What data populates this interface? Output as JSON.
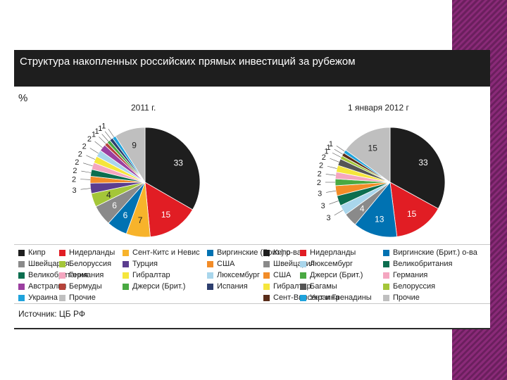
{
  "header": {
    "title": "Структура накопленных российских прямых инвестиций за рубежом",
    "unit": "%"
  },
  "source": "Источник: ЦБ РФ",
  "chart_data": [
    {
      "type": "pie",
      "title": "2011 г.",
      "slices": [
        {
          "label": "Кипр",
          "value": 33,
          "color": "#1e1e1e"
        },
        {
          "label": "Нидерланды",
          "value": 15,
          "color": "#e11d24"
        },
        {
          "label": "Сент-Китс и Невис",
          "value": 7,
          "color": "#f7b32b"
        },
        {
          "label": "Виргинские (Брит.) о-ва",
          "value": 6,
          "color": "#0072b2"
        },
        {
          "label": "Швейцария",
          "value": 6,
          "color": "#8a8a8a"
        },
        {
          "label": "Белоруссия",
          "value": 4,
          "color": "#a4c639"
        },
        {
          "label": "Турция",
          "value": 3,
          "color": "#5b3d8f"
        },
        {
          "label": "США",
          "value": 2,
          "color": "#f28c28"
        },
        {
          "label": "Великобритания",
          "value": 2,
          "color": "#0b6e4f"
        },
        {
          "label": "Германия",
          "value": 2,
          "color": "#f4a6c0"
        },
        {
          "label": "Гибралтар",
          "value": 2,
          "color": "#f5e63c"
        },
        {
          "label": "Люксембург",
          "value": 2,
          "color": "#a9d6ec"
        },
        {
          "label": "Австралия",
          "value": 2,
          "color": "#9b3fa0"
        },
        {
          "label": "Бермуды",
          "value": 1,
          "color": "#b5433a"
        },
        {
          "label": "Джерси (Брит.)",
          "value": 1,
          "color": "#49a942"
        },
        {
          "label": "Испания",
          "value": 1,
          "color": "#2d3e6e"
        },
        {
          "label": "Украина",
          "value": 1,
          "color": "#1fa3dc"
        },
        {
          "label": "Прочие",
          "value": 9,
          "color": "#bfbfbf"
        }
      ]
    },
    {
      "type": "pie",
      "title": "1 января 2012 г",
      "slices": [
        {
          "label": "Кипр",
          "value": 33,
          "color": "#1e1e1e"
        },
        {
          "label": "Нидерланды",
          "value": 15,
          "color": "#e11d24"
        },
        {
          "label": "Виргинские (Брит.) о-ва",
          "value": 13,
          "color": "#0072b2"
        },
        {
          "label": "Швейцария",
          "value": 4,
          "color": "#8a8a8a"
        },
        {
          "label": "Люксембург",
          "value": 3,
          "color": "#a9d6ec"
        },
        {
          "label": "Великобритания",
          "value": 3,
          "color": "#0b6e4f"
        },
        {
          "label": "США",
          "value": 3,
          "color": "#f28c28"
        },
        {
          "label": "Джерси (Брит.)",
          "value": 2,
          "color": "#49a942"
        },
        {
          "label": "Германия",
          "value": 2,
          "color": "#f4a6c0"
        },
        {
          "label": "Гибралтар",
          "value": 2,
          "color": "#f5e63c"
        },
        {
          "label": "Багамы",
          "value": 2,
          "color": "#555555"
        },
        {
          "label": "Белоруссия",
          "value": 1,
          "color": "#a4c639"
        },
        {
          "label": "Сент-Винсент и Гренадины",
          "value": 1,
          "color": "#5a2d1a"
        },
        {
          "label": "Украина",
          "value": 1,
          "color": "#1fa3dc"
        },
        {
          "label": "Прочие",
          "value": 15,
          "color": "#bfbfbf"
        }
      ]
    }
  ],
  "legend_left": [
    {
      "label": "Кипр",
      "color": "#1e1e1e"
    },
    {
      "label": "Нидерланды",
      "color": "#e11d24"
    },
    {
      "label": "Сент-Китс и Невис",
      "color": "#f7b32b"
    },
    {
      "label": "Виргинские (Брит.) о-ва",
      "color": "#0072b2"
    },
    {
      "label": "Швейцария",
      "color": "#8a8a8a"
    },
    {
      "label": "Белоруссия",
      "color": "#a4c639"
    },
    {
      "label": "Турция",
      "color": "#5b3d8f"
    },
    {
      "label": "США",
      "color": "#f28c28"
    },
    {
      "label": "Великобритания",
      "color": "#0b6e4f"
    },
    {
      "label": "Германия",
      "color": "#f4a6c0"
    },
    {
      "label": "Гибралтар",
      "color": "#f5e63c"
    },
    {
      "label": "Люксембург",
      "color": "#a9d6ec"
    },
    {
      "label": "Австралия",
      "color": "#9b3fa0"
    },
    {
      "label": "Бермуды",
      "color": "#b5433a"
    },
    {
      "label": "Джерси (Брит.)",
      "color": "#49a942"
    },
    {
      "label": "Испания",
      "color": "#2d3e6e"
    },
    {
      "label": "Украина",
      "color": "#1fa3dc"
    },
    {
      "label": "Прочие",
      "color": "#bfbfbf"
    }
  ],
  "legend_right": [
    {
      "label": "Кипр",
      "color": "#1e1e1e"
    },
    {
      "label": "Нидерланды",
      "color": "#e11d24"
    },
    {
      "label": "Виргинские (Брит.) о-ва",
      "color": "#0072b2"
    },
    {
      "label": "Швейцария",
      "color": "#8a8a8a"
    },
    {
      "label": "Люксембург",
      "color": "#a9d6ec"
    },
    {
      "label": "Великобритания",
      "color": "#0b6e4f"
    },
    {
      "label": "США",
      "color": "#f28c28"
    },
    {
      "label": "Джерси (Брит.)",
      "color": "#49a942"
    },
    {
      "label": "Германия",
      "color": "#f4a6c0"
    },
    {
      "label": "Гибралтар",
      "color": "#f5e63c"
    },
    {
      "label": "Багамы",
      "color": "#555555"
    },
    {
      "label": "Белоруссия",
      "color": "#a4c639"
    },
    {
      "label": "Сент-Винсент и Гренадины",
      "color": "#5a2d1a"
    },
    {
      "label": "Украина",
      "color": "#1fa3dc"
    },
    {
      "label": "Прочие",
      "color": "#bfbfbf"
    }
  ]
}
